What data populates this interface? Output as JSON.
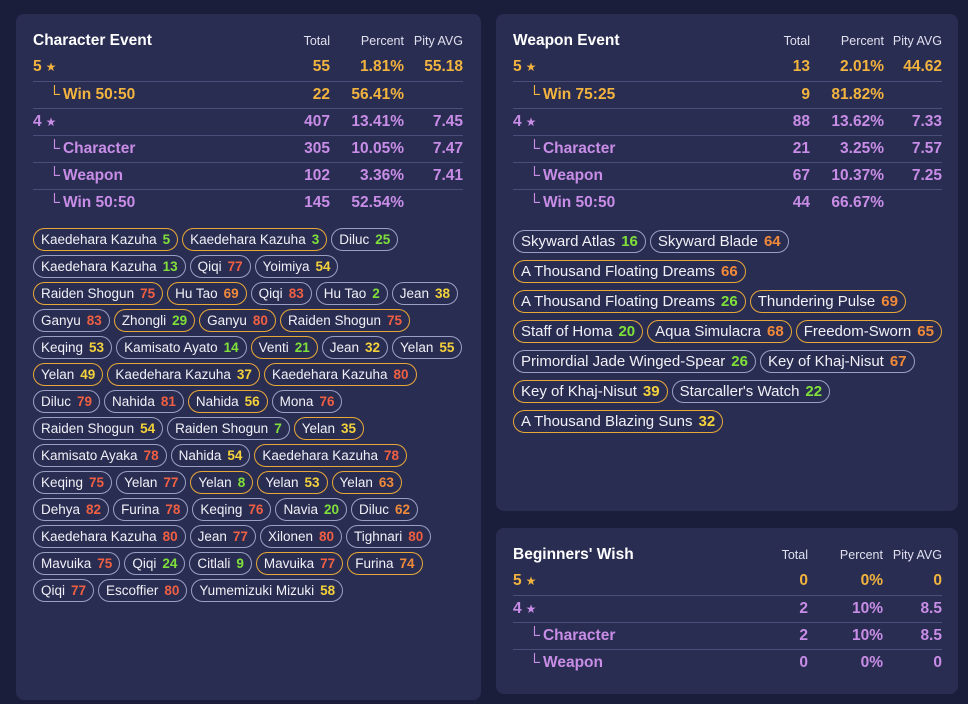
{
  "headers": {
    "total": "Total",
    "percent": "Percent",
    "pity": "Pity AVG"
  },
  "character_event": {
    "title": "Character Event",
    "rows": [
      {
        "label": "5",
        "star": "★",
        "total": "55",
        "percent": "1.81%",
        "pity": "55.18",
        "color": "gold",
        "sub": false
      },
      {
        "label": "Win 50:50",
        "total": "22",
        "percent": "56.41%",
        "pity": "",
        "color": "gold",
        "sub": true
      },
      {
        "label": "4",
        "star": "★",
        "total": "407",
        "percent": "13.41%",
        "pity": "7.45",
        "color": "purple",
        "sub": false
      },
      {
        "label": "Character",
        "total": "305",
        "percent": "10.05%",
        "pity": "7.47",
        "color": "purple",
        "sub": true
      },
      {
        "label": "Weapon",
        "total": "102",
        "percent": "3.36%",
        "pity": "7.41",
        "color": "purple",
        "sub": true
      },
      {
        "label": "Win 50:50",
        "total": "145",
        "percent": "52.54%",
        "pity": "",
        "color": "purple",
        "sub": true
      }
    ],
    "pulls": [
      {
        "name": "Kaedehara Kazuha",
        "pity": "5",
        "gold": true
      },
      {
        "name": "Kaedehara Kazuha",
        "pity": "3",
        "gold": true
      },
      {
        "name": "Diluc",
        "pity": "25",
        "gold": false
      },
      {
        "name": "Kaedehara Kazuha",
        "pity": "13",
        "gold": false
      },
      {
        "name": "Qiqi",
        "pity": "77",
        "gold": false
      },
      {
        "name": "Yoimiya",
        "pity": "54",
        "gold": false
      },
      {
        "name": "Raiden Shogun",
        "pity": "75",
        "gold": true
      },
      {
        "name": "Hu Tao",
        "pity": "69",
        "gold": true
      },
      {
        "name": "Qiqi",
        "pity": "83",
        "gold": false
      },
      {
        "name": "Hu Tao",
        "pity": "2",
        "gold": false
      },
      {
        "name": "Jean",
        "pity": "38",
        "gold": false
      },
      {
        "name": "Ganyu",
        "pity": "83",
        "gold": false
      },
      {
        "name": "Zhongli",
        "pity": "29",
        "gold": true
      },
      {
        "name": "Ganyu",
        "pity": "80",
        "gold": true
      },
      {
        "name": "Raiden Shogun",
        "pity": "75",
        "gold": true
      },
      {
        "name": "Keqing",
        "pity": "53",
        "gold": false
      },
      {
        "name": "Kamisato Ayato",
        "pity": "14",
        "gold": false
      },
      {
        "name": "Venti",
        "pity": "21",
        "gold": true
      },
      {
        "name": "Jean",
        "pity": "32",
        "gold": false
      },
      {
        "name": "Yelan",
        "pity": "55",
        "gold": false
      },
      {
        "name": "Yelan",
        "pity": "49",
        "gold": true
      },
      {
        "name": "Kaedehara Kazuha",
        "pity": "37",
        "gold": true
      },
      {
        "name": "Kaedehara Kazuha",
        "pity": "80",
        "gold": true
      },
      {
        "name": "Diluc",
        "pity": "79",
        "gold": false
      },
      {
        "name": "Nahida",
        "pity": "81",
        "gold": false
      },
      {
        "name": "Nahida",
        "pity": "56",
        "gold": true
      },
      {
        "name": "Mona",
        "pity": "76",
        "gold": false
      },
      {
        "name": "Raiden Shogun",
        "pity": "54",
        "gold": false
      },
      {
        "name": "Raiden Shogun",
        "pity": "7",
        "gold": false
      },
      {
        "name": "Yelan",
        "pity": "35",
        "gold": true
      },
      {
        "name": "Kamisato Ayaka",
        "pity": "78",
        "gold": false
      },
      {
        "name": "Nahida",
        "pity": "54",
        "gold": false
      },
      {
        "name": "Kaedehara Kazuha",
        "pity": "78",
        "gold": true
      },
      {
        "name": "Keqing",
        "pity": "75",
        "gold": false
      },
      {
        "name": "Yelan",
        "pity": "77",
        "gold": false
      },
      {
        "name": "Yelan",
        "pity": "8",
        "gold": true
      },
      {
        "name": "Yelan",
        "pity": "53",
        "gold": true
      },
      {
        "name": "Yelan",
        "pity": "63",
        "gold": true
      },
      {
        "name": "Dehya",
        "pity": "82",
        "gold": false
      },
      {
        "name": "Furina",
        "pity": "78",
        "gold": false
      },
      {
        "name": "Keqing",
        "pity": "76",
        "gold": false
      },
      {
        "name": "Navia",
        "pity": "20",
        "gold": false
      },
      {
        "name": "Diluc",
        "pity": "62",
        "gold": false
      },
      {
        "name": "Kaedehara Kazuha",
        "pity": "80",
        "gold": false
      },
      {
        "name": "Jean",
        "pity": "77",
        "gold": false
      },
      {
        "name": "Xilonen",
        "pity": "80",
        "gold": false
      },
      {
        "name": "Tighnari",
        "pity": "80",
        "gold": false
      },
      {
        "name": "Mavuika",
        "pity": "75",
        "gold": false
      },
      {
        "name": "Qiqi",
        "pity": "24",
        "gold": false
      },
      {
        "name": "Citlali",
        "pity": "9",
        "gold": false
      },
      {
        "name": "Mavuika",
        "pity": "77",
        "gold": true
      },
      {
        "name": "Furina",
        "pity": "74",
        "gold": true
      },
      {
        "name": "Qiqi",
        "pity": "77",
        "gold": false
      },
      {
        "name": "Escoffier",
        "pity": "80",
        "gold": false
      },
      {
        "name": "Yumemizuki Mizuki",
        "pity": "58",
        "gold": false
      }
    ]
  },
  "weapon_event": {
    "title": "Weapon Event",
    "rows": [
      {
        "label": "5",
        "star": "★",
        "total": "13",
        "percent": "2.01%",
        "pity": "44.62",
        "color": "gold",
        "sub": false
      },
      {
        "label": "Win 75:25",
        "total": "9",
        "percent": "81.82%",
        "pity": "",
        "color": "gold",
        "sub": true
      },
      {
        "label": "4",
        "star": "★",
        "total": "88",
        "percent": "13.62%",
        "pity": "7.33",
        "color": "purple",
        "sub": false
      },
      {
        "label": "Character",
        "total": "21",
        "percent": "3.25%",
        "pity": "7.57",
        "color": "purple",
        "sub": true
      },
      {
        "label": "Weapon",
        "total": "67",
        "percent": "10.37%",
        "pity": "7.25",
        "color": "purple",
        "sub": true
      },
      {
        "label": "Win 50:50",
        "total": "44",
        "percent": "66.67%",
        "pity": "",
        "color": "purple",
        "sub": true
      }
    ],
    "pulls": [
      {
        "name": "Skyward Atlas",
        "pity": "16",
        "gold": false
      },
      {
        "name": "Skyward Blade",
        "pity": "64",
        "gold": false
      },
      {
        "name": "A Thousand Floating Dreams",
        "pity": "66",
        "gold": true
      },
      {
        "name": "A Thousand Floating Dreams",
        "pity": "26",
        "gold": true
      },
      {
        "name": "Thundering Pulse",
        "pity": "69",
        "gold": true
      },
      {
        "name": "Staff of Homa",
        "pity": "20",
        "gold": true
      },
      {
        "name": "Aqua Simulacra",
        "pity": "68",
        "gold": true
      },
      {
        "name": "Freedom-Sworn",
        "pity": "65",
        "gold": true
      },
      {
        "name": "Primordial Jade Winged-Spear",
        "pity": "26",
        "gold": false
      },
      {
        "name": "Key of Khaj-Nisut",
        "pity": "67",
        "gold": false
      },
      {
        "name": "Key of Khaj-Nisut",
        "pity": "39",
        "gold": true
      },
      {
        "name": "Starcaller's Watch",
        "pity": "22",
        "gold": false
      },
      {
        "name": "A Thousand Blazing Suns",
        "pity": "32",
        "gold": true
      }
    ]
  },
  "beginners_wish": {
    "title": "Beginners' Wish",
    "rows": [
      {
        "label": "5",
        "star": "★",
        "total": "0",
        "percent": "0%",
        "pity": "0",
        "color": "gold",
        "sub": false
      },
      {
        "label": "4",
        "star": "★",
        "total": "2",
        "percent": "10%",
        "pity": "8.5",
        "color": "purple",
        "sub": false
      },
      {
        "label": "Character",
        "total": "2",
        "percent": "10%",
        "pity": "8.5",
        "color": "purple",
        "sub": true
      },
      {
        "label": "Weapon",
        "total": "0",
        "percent": "0%",
        "pity": "0",
        "color": "purple",
        "sub": true
      }
    ]
  },
  "colors": {
    "gold": "#f2b43e",
    "purple": "#c88de6",
    "panel": "#2a2d52",
    "background": "#1b1e3a"
  },
  "icons": {
    "star": "star-icon",
    "sub_marker": "corner-icon"
  }
}
